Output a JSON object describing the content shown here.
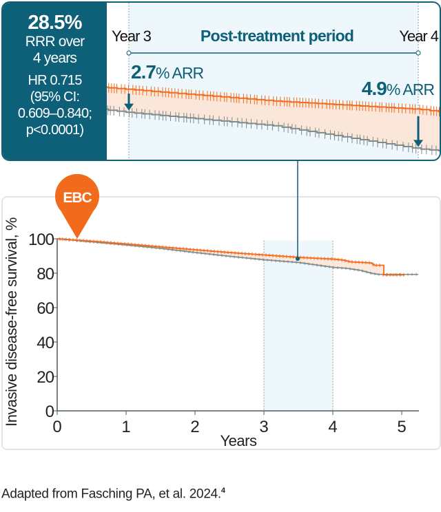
{
  "inset": {
    "rrr_value": "28.5%",
    "rrr_line1": "RRR over",
    "rrr_line2": "4 years",
    "hr_line1": "HR 0.715",
    "hr_line2": "(95% CI:",
    "hr_line3": "0.609–0.840;",
    "hr_line4": "p<0.0001)",
    "period_title": "Post-treatment period",
    "start_label": "Year 3",
    "end_label": "Year 4",
    "arr_start_value": "2.7",
    "arr_start_unit": "% ARR",
    "arr_end_value": "4.9",
    "arr_end_unit": "% ARR"
  },
  "badge": {
    "label": "EBC"
  },
  "colors": {
    "teal": "#0e5f78",
    "orange": "#f26b1d",
    "gray": "#7f8b8b",
    "band": "#eef7fb",
    "gap_fill": "#fde3d3"
  },
  "chart_data": {
    "type": "line",
    "xlabel": "Years",
    "ylabel": "Invasive disease-free survival, %",
    "xlim": [
      0,
      5.25
    ],
    "ylim": [
      0,
      100
    ],
    "xticks": [
      "0",
      "1",
      "2",
      "3",
      "4",
      "5"
    ],
    "yticks": [
      "0",
      "20",
      "40",
      "60",
      "80",
      "100"
    ],
    "highlight_band": [
      3,
      4
    ],
    "grid": false,
    "series": [
      {
        "color": "orange",
        "x": [
          0,
          0.5,
          1,
          1.5,
          2,
          2.5,
          3,
          3.5,
          4,
          4.15,
          4.25,
          4.55,
          4.6,
          4.72,
          4.72,
          5.05
        ],
        "y": [
          100,
          98.6,
          97,
          95.3,
          93.6,
          92,
          90.6,
          89.2,
          88.2,
          87.6,
          86.6,
          86,
          84.6,
          84.6,
          79,
          79
        ]
      },
      {
        "color": "gray",
        "x": [
          0,
          0.5,
          1,
          1.5,
          2,
          2.5,
          3,
          3.5,
          4,
          4.2,
          4.4,
          4.55,
          4.65,
          5.25
        ],
        "y": [
          100,
          98.2,
          96.4,
          94.4,
          92,
          89.8,
          87.8,
          86.2,
          83.4,
          82.8,
          81.6,
          80,
          79.3,
          79.3
        ]
      }
    ]
  },
  "footer": {
    "text": "Adapted from Fasching PA, et al. 2024.",
    "ref": "4"
  }
}
